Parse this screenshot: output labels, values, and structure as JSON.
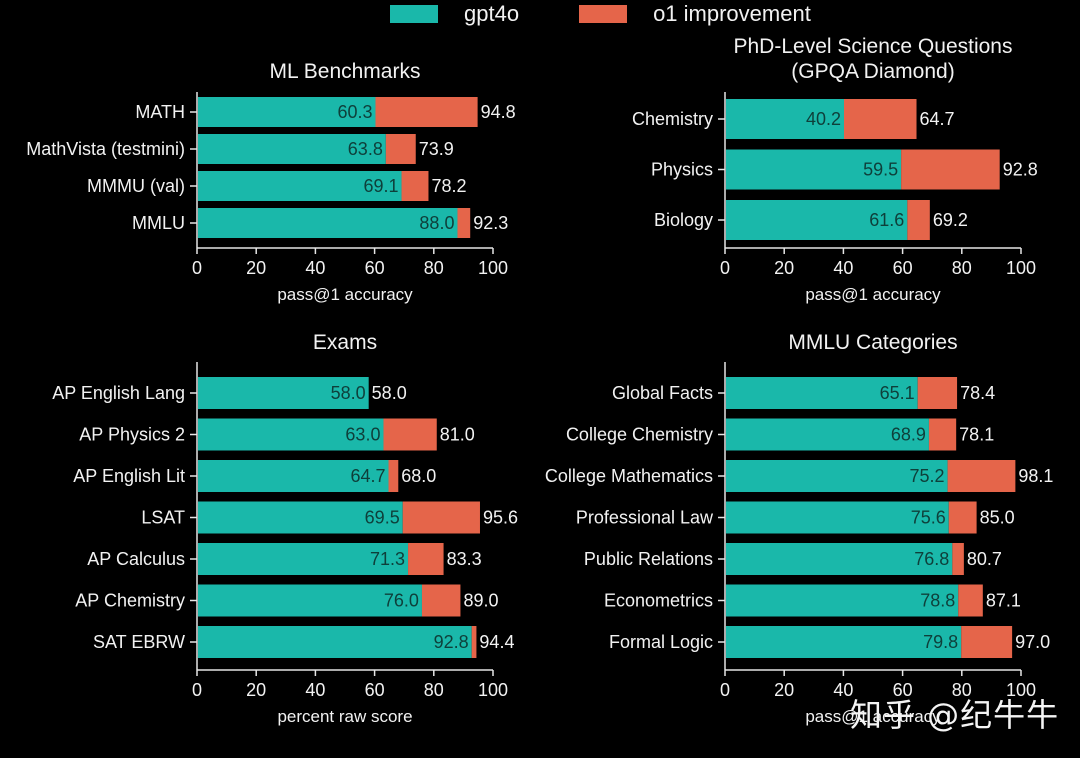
{
  "legend": [
    {
      "label": "gpt4o",
      "color": "#1ab8aa"
    },
    {
      "label": "o1 improvement",
      "color": "#e5654a"
    }
  ],
  "watermark": "知乎 @纪牛牛",
  "colors": {
    "gpt4o": "#1ab8aa",
    "o1": "#e5654a",
    "inner_label": "#0e3f3a",
    "text": "#f2f2f2",
    "axis": "#e6e6e6"
  },
  "chart_data": [
    {
      "type": "bar",
      "stacked": true,
      "orientation": "horizontal",
      "title": "ML Benchmarks",
      "xlabel": "pass@1 accuracy",
      "ylabel": "",
      "xlim": [
        0,
        100
      ],
      "xticks": [
        0,
        20,
        40,
        60,
        80,
        100
      ],
      "categories": [
        "MATH",
        "MathVista (testmini)",
        "MMMU (val)",
        "MMLU"
      ],
      "series": [
        {
          "name": "gpt4o",
          "values": [
            60.3,
            63.8,
            69.1,
            88.0
          ]
        },
        {
          "name": "o1",
          "values": [
            94.8,
            73.9,
            78.2,
            92.3
          ]
        }
      ],
      "gpt4o_labels": [
        "60.3",
        "63.8",
        "69.1",
        "88.0"
      ],
      "o1_labels": [
        "94.8",
        "73.9",
        "78.2",
        "92.3"
      ]
    },
    {
      "type": "bar",
      "stacked": true,
      "orientation": "horizontal",
      "title": "PhD-Level Science Questions",
      "subtitle": "(GPQA Diamond)",
      "xlabel": "pass@1 accuracy",
      "ylabel": "",
      "xlim": [
        0,
        100
      ],
      "xticks": [
        0,
        20,
        40,
        60,
        80,
        100
      ],
      "categories": [
        "Chemistry",
        "Physics",
        "Biology"
      ],
      "series": [
        {
          "name": "gpt4o",
          "values": [
            40.2,
            59.5,
            61.6
          ]
        },
        {
          "name": "o1",
          "values": [
            64.7,
            92.8,
            69.2
          ]
        }
      ],
      "gpt4o_labels": [
        "40.2",
        "59.5",
        "61.6"
      ],
      "o1_labels": [
        "64.7",
        "92.8",
        "69.2"
      ]
    },
    {
      "type": "bar",
      "stacked": true,
      "orientation": "horizontal",
      "title": "Exams",
      "xlabel": "percent raw score",
      "ylabel": "",
      "xlim": [
        0,
        100
      ],
      "xticks": [
        0,
        20,
        40,
        60,
        80,
        100
      ],
      "categories": [
        "AP English Lang",
        "AP Physics 2",
        "AP English Lit",
        "LSAT",
        "AP Calculus",
        "AP Chemistry",
        "SAT EBRW"
      ],
      "series": [
        {
          "name": "gpt4o",
          "values": [
            58.0,
            63.0,
            64.7,
            69.5,
            71.3,
            76.0,
            92.8
          ]
        },
        {
          "name": "o1",
          "values": [
            58.0,
            81.0,
            68.0,
            95.6,
            83.3,
            89.0,
            94.4
          ]
        }
      ],
      "gpt4o_labels": [
        "58.0",
        "63.0",
        "64.7",
        "69.5",
        "71.3",
        "76.0",
        "92.8"
      ],
      "o1_labels": [
        "58.0",
        "81.0",
        "68.0",
        "95.6",
        "83.3",
        "89.0",
        "94.4"
      ]
    },
    {
      "type": "bar",
      "stacked": true,
      "orientation": "horizontal",
      "title": "MMLU Categories",
      "xlabel": "pass@1 accuracy",
      "ylabel": "",
      "xlim": [
        0,
        100
      ],
      "xticks": [
        0,
        20,
        40,
        60,
        80,
        100
      ],
      "categories": [
        "Global Facts",
        "College Chemistry",
        "College Mathematics",
        "Professional Law",
        "Public Relations",
        "Econometrics",
        "Formal Logic"
      ],
      "series": [
        {
          "name": "gpt4o",
          "values": [
            65.1,
            68.9,
            75.2,
            75.6,
            76.8,
            78.8,
            79.8
          ]
        },
        {
          "name": "o1",
          "values": [
            78.4,
            78.1,
            98.1,
            85.0,
            80.7,
            87.1,
            97.0
          ]
        }
      ],
      "gpt4o_labels": [
        "65.1",
        "68.9",
        "75.2",
        "75.6",
        "76.8",
        "78.8",
        "79.8"
      ],
      "o1_labels": [
        "78.4",
        "78.1",
        "98.1",
        "85.0",
        "80.7",
        "87.1",
        "97.0"
      ]
    }
  ]
}
